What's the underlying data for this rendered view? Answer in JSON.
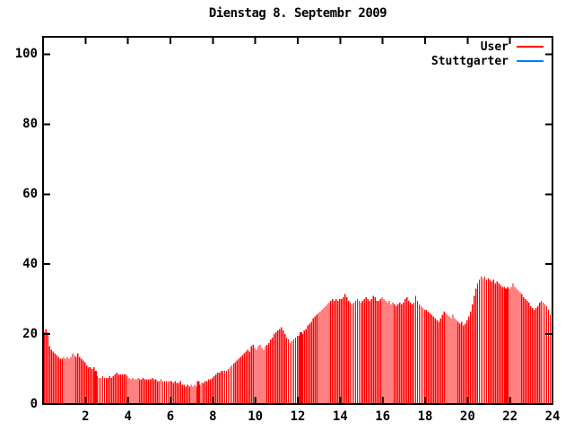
{
  "window": {
    "background": "#ffffff"
  },
  "chart_data": {
    "type": "bar",
    "title": "Dienstag 8. Septembr 2009",
    "xlabel": "",
    "ylabel": "",
    "x_unit": "hour of day",
    "sample_interval_minutes": 5,
    "xlim": [
      0,
      24
    ],
    "ylim": [
      0,
      105
    ],
    "xticks": [
      2,
      4,
      6,
      8,
      10,
      12,
      14,
      16,
      18,
      20,
      22,
      24
    ],
    "yticks": [
      0,
      20,
      40,
      60,
      80,
      100
    ],
    "grid": false,
    "legend_position": "top-right-inside",
    "axis_color": "#000000",
    "wide_bar_indexes": [
      29,
      87,
      145,
      261
    ],
    "series": [
      {
        "name": "User",
        "color": "#ff0000",
        "values": [
          20.5,
          21.5,
          20.5,
          16.5,
          15.5,
          15,
          14.5,
          14,
          13.5,
          13,
          13,
          13.5,
          13,
          13.5,
          13,
          13.5,
          14.5,
          14,
          13.5,
          14.5,
          13.5,
          13,
          12.5,
          12,
          11,
          10.5,
          10.5,
          10,
          10.5,
          9.5,
          8,
          7.5,
          7.5,
          8,
          7.5,
          7.5,
          7.5,
          8,
          7.5,
          8,
          8.5,
          9,
          8.5,
          8.5,
          8.5,
          8.5,
          8.5,
          8,
          7.5,
          7,
          7.5,
          7,
          7,
          7.5,
          7,
          7,
          7.5,
          7,
          7,
          7,
          7,
          7.5,
          7,
          7,
          6.5,
          6.5,
          7,
          6.5,
          6.5,
          6.5,
          6.5,
          6.5,
          6.5,
          6,
          6.5,
          6,
          6,
          6.5,
          5.5,
          5.5,
          5,
          5.5,
          5,
          5.5,
          5,
          5.5,
          5,
          6.5,
          5.5,
          6,
          6,
          6.5,
          6.5,
          7,
          7,
          7.5,
          8,
          8.5,
          9,
          9,
          9.5,
          9.5,
          9.5,
          9.5,
          10,
          10.5,
          11,
          11.5,
          12,
          12.5,
          13,
          13.5,
          14,
          14.5,
          15,
          15.5,
          15,
          16.5,
          17,
          16,
          15.5,
          16.5,
          17,
          16,
          15.5,
          16.5,
          17,
          17.5,
          18.5,
          19,
          20,
          20.5,
          21,
          21.5,
          22,
          21,
          20,
          19,
          18.5,
          17.5,
          18,
          18.5,
          19,
          19.5,
          19.5,
          20.5,
          20,
          21,
          21.5,
          22.5,
          23,
          23.5,
          24.5,
          25,
          25.5,
          26,
          26.5,
          27,
          27.5,
          28,
          28.5,
          29,
          29.5,
          30,
          29.5,
          30,
          29.5,
          30,
          30,
          30.5,
          31.5,
          30.5,
          29.5,
          29,
          28.5,
          29,
          29.5,
          30,
          29.5,
          29,
          29.5,
          30,
          30.5,
          30,
          29.5,
          30,
          31,
          30.5,
          29.5,
          29.5,
          30,
          30.5,
          30,
          29.5,
          29,
          29.5,
          28.5,
          29,
          28.5,
          28,
          28.5,
          29,
          28.5,
          29,
          30,
          30.5,
          29.5,
          29,
          28.5,
          29,
          31,
          29.5,
          28.5,
          28,
          27.5,
          27,
          27,
          26.5,
          26,
          25.5,
          25,
          24.5,
          24,
          23.5,
          24.5,
          25.5,
          26.5,
          26,
          25.5,
          25,
          24.5,
          25.5,
          24.5,
          24,
          23.5,
          23,
          23.5,
          22.5,
          23,
          24,
          25,
          26.5,
          28.5,
          31,
          33,
          34.5,
          35.5,
          36.5,
          36,
          36.5,
          35.5,
          36,
          35.5,
          35,
          35.5,
          34.5,
          35,
          34.5,
          34,
          33.5,
          33.5,
          33,
          33.5,
          33,
          33.5,
          34.5,
          33.5,
          33,
          32.5,
          32,
          31.5,
          30.5,
          30,
          29.5,
          29,
          28,
          27.5,
          27,
          27.5,
          28,
          29,
          29.5,
          29,
          28.5,
          28,
          27,
          25.5,
          24.5
        ]
      },
      {
        "name": "Stuttgarter",
        "color": "#0080ff",
        "values": []
      }
    ]
  }
}
